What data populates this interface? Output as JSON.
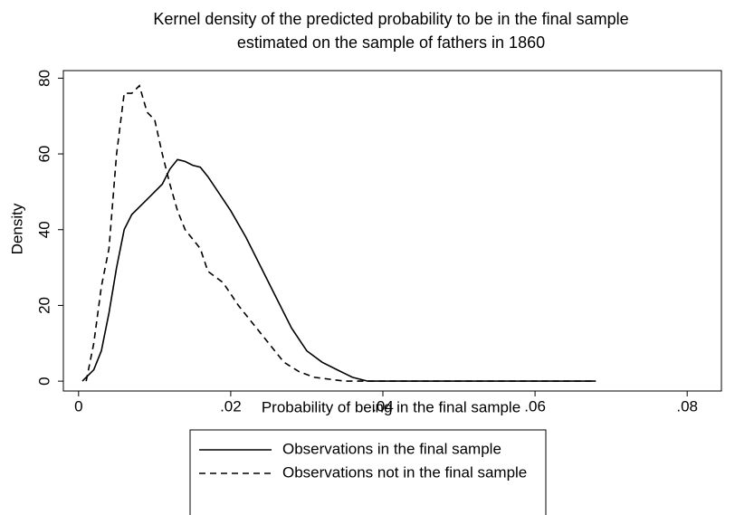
{
  "chart_data": {
    "type": "line",
    "title": [
      "Kernel density of the predicted probability to be in the final sample",
      "estimated on the sample of fathers in 1860"
    ],
    "x_label": "Probability of being in the final sample",
    "y_label": "Density",
    "xlim": [
      -0.002,
      0.0845
    ],
    "ylim": [
      -2.6,
      82
    ],
    "xticks": [
      0,
      {
        "value": 0.02,
        "label": ".02"
      },
      {
        "value": 0.04,
        "label": ".04"
      },
      {
        "value": 0.06,
        "label": ".06"
      },
      {
        "value": 0.08,
        "label": ".08"
      }
    ],
    "yticks": [
      0,
      20,
      40,
      60,
      80
    ],
    "legend": "bottom",
    "series": [
      {
        "name": "Observations in the final sample",
        "color": "#000000",
        "dash": "solid",
        "x": [
          0.0005,
          0.002,
          0.003,
          0.004,
          0.005,
          0.006,
          0.007,
          0.009,
          0.011,
          0.012,
          0.013,
          0.014,
          0.015,
          0.016,
          0.017,
          0.018,
          0.02,
          0.022,
          0.024,
          0.026,
          0.028,
          0.03,
          0.032,
          0.034,
          0.036,
          0.038,
          0.068
        ],
        "values": [
          0,
          3,
          8,
          18,
          30,
          40,
          44,
          48,
          52,
          56,
          58.5,
          58,
          57,
          56.5,
          54,
          51,
          45,
          38,
          30,
          22,
          14,
          8,
          5,
          3,
          1,
          0,
          0
        ]
      },
      {
        "name": "Observations not in the final sample",
        "color": "#000000",
        "dash": "dashed",
        "x": [
          0.001,
          0.002,
          0.003,
          0.004,
          0.005,
          0.006,
          0.007,
          0.008,
          0.009,
          0.01,
          0.011,
          0.012,
          0.013,
          0.014,
          0.016,
          0.017,
          0.019,
          0.021,
          0.023,
          0.025,
          0.027,
          0.029,
          0.031,
          0.033,
          0.035,
          0.068
        ],
        "values": [
          0,
          10,
          25,
          35,
          60,
          76,
          76,
          78,
          71,
          69,
          60,
          52,
          45,
          40,
          35,
          29,
          26,
          20,
          15,
          10,
          5,
          2.5,
          1,
          0.5,
          0,
          0
        ]
      }
    ]
  }
}
